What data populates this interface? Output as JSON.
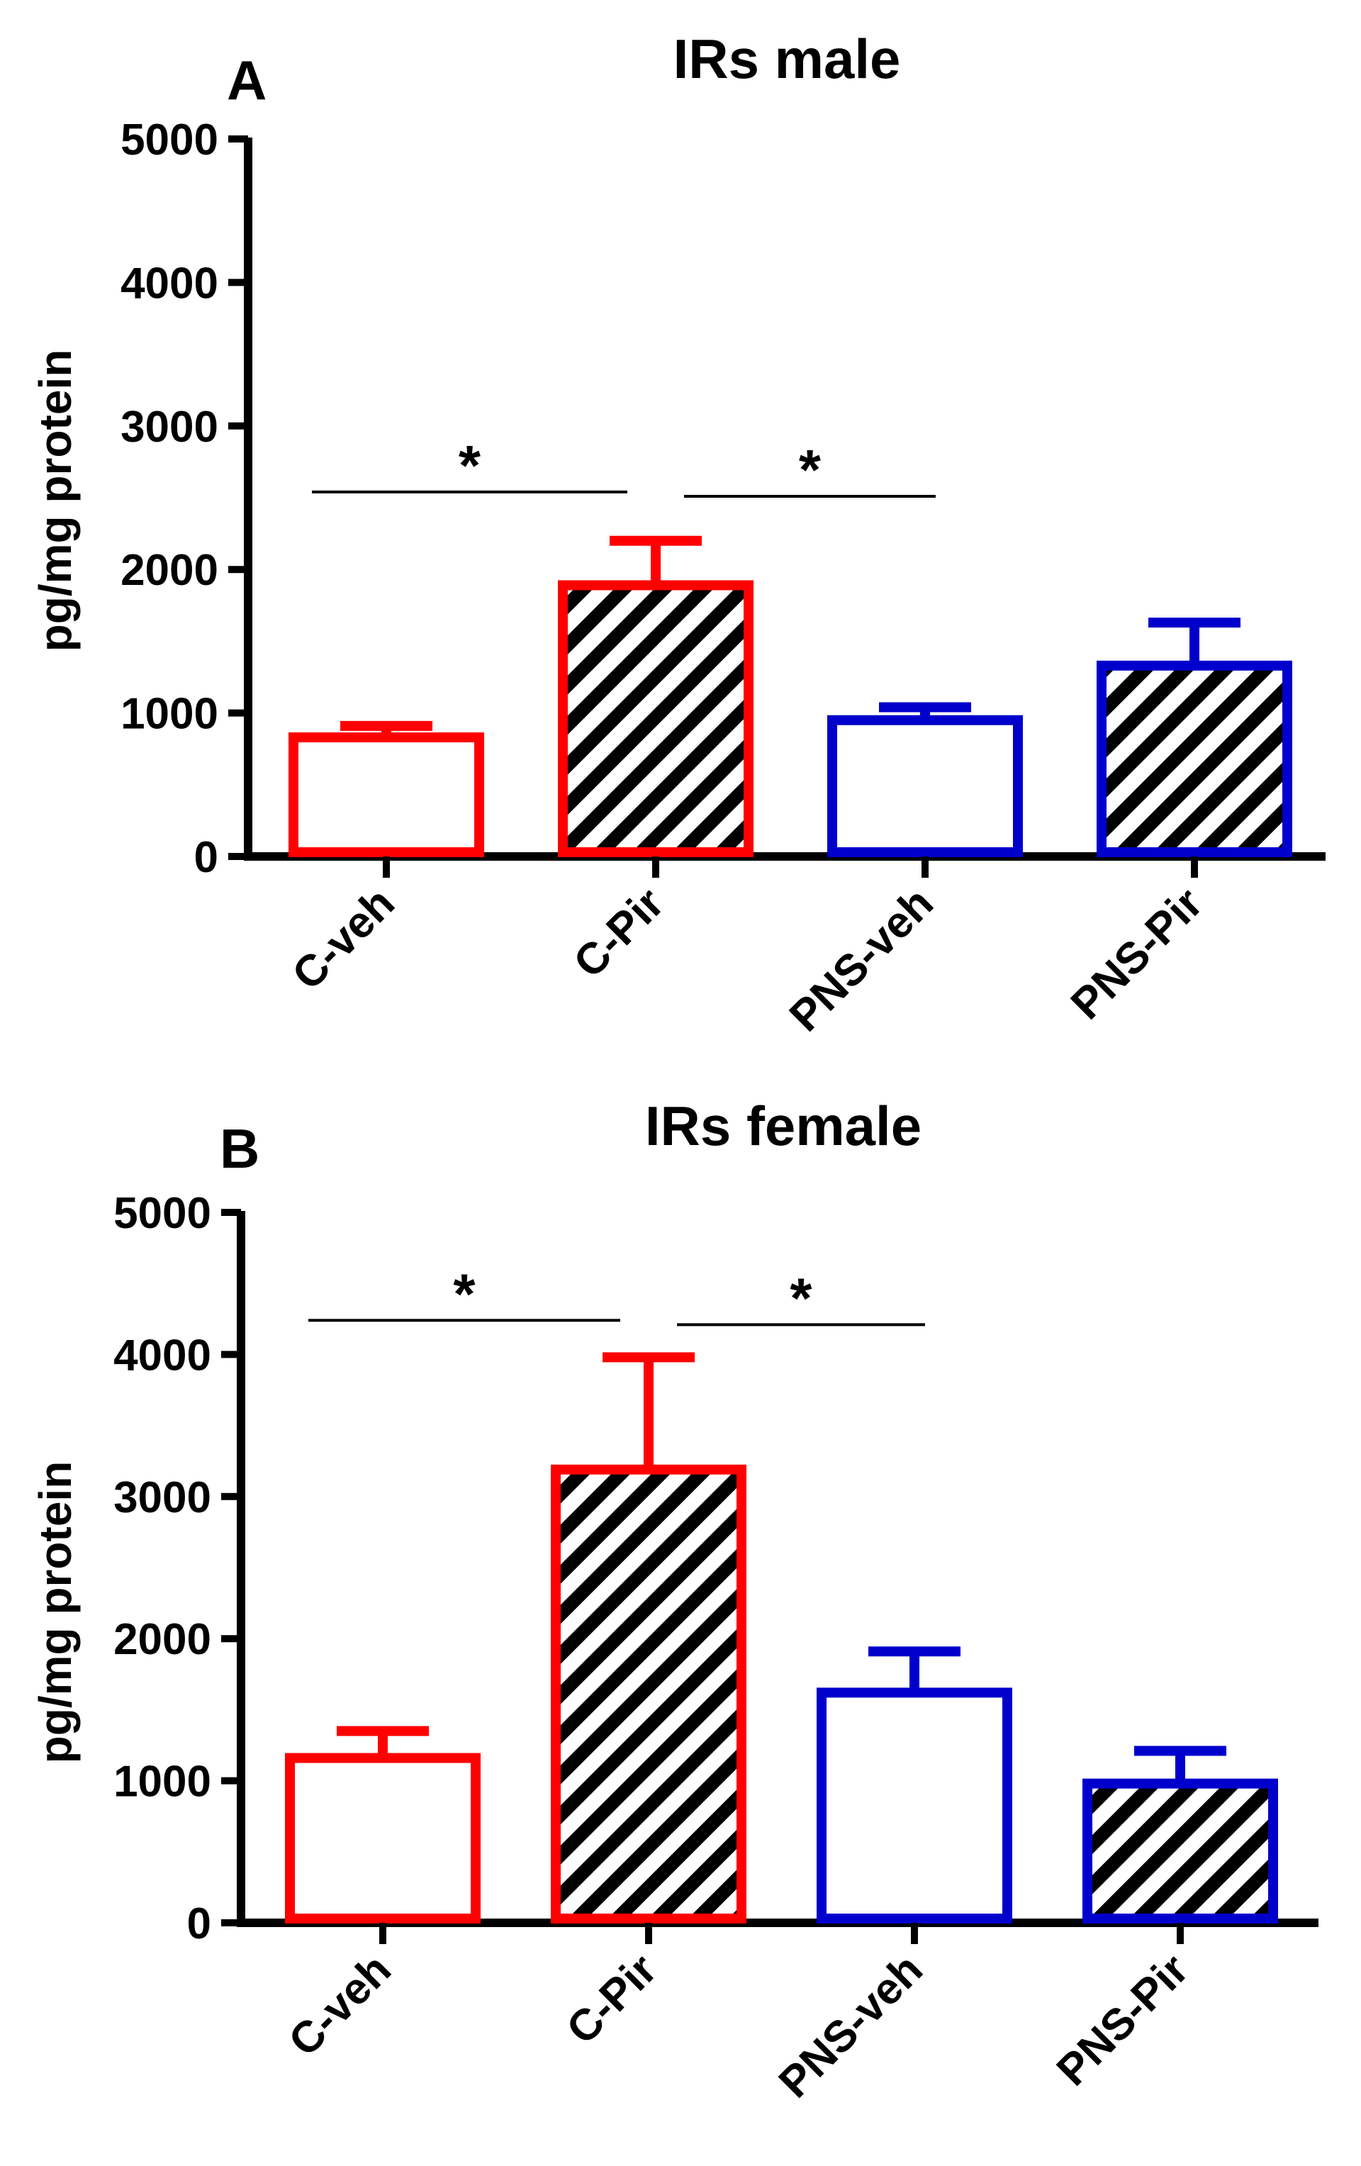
{
  "chart_data": [
    {
      "type": "bar",
      "panel_label": "A",
      "title": "IRs male",
      "xlabel": "",
      "ylabel": "pg/mg protein",
      "ylim": [
        0,
        5000
      ],
      "yticks": [
        0,
        1000,
        2000,
        3000,
        4000,
        5000
      ],
      "ytick_labels": [
        "0",
        "1000",
        "2000",
        "3000",
        "4000",
        "5000"
      ],
      "categories": [
        "C-veh",
        "C-Pir",
        "PNS-veh",
        "PNS-Pir"
      ],
      "values": [
        830,
        1890,
        950,
        1330
      ],
      "errors": [
        80,
        310,
        90,
        300
      ],
      "bar_colors": [
        "#ff0000",
        "#ff0000",
        "#0000cc",
        "#0000cc"
      ],
      "bar_patterns": [
        "none",
        "hatch",
        "none",
        "hatch"
      ],
      "significance": [
        {
          "from": 0,
          "to": 1,
          "y": 2540,
          "label": "*"
        },
        {
          "from": 1,
          "to": 2,
          "y": 2510,
          "label": "*"
        }
      ],
      "grid": false,
      "legend": "none"
    },
    {
      "type": "bar",
      "panel_label": "B",
      "title": "IRs female",
      "xlabel": "",
      "ylabel": "pg/mg protein",
      "ylim": [
        0,
        5000
      ],
      "yticks": [
        0,
        1000,
        2000,
        3000,
        4000,
        5000
      ],
      "ytick_labels": [
        "0",
        "1000",
        "2000",
        "3000",
        "4000",
        "5000"
      ],
      "categories": [
        "C-veh",
        "C-Pir",
        "PNS-veh",
        "PNS-Pir"
      ],
      "values": [
        1160,
        3190,
        1620,
        980
      ],
      "errors": [
        190,
        790,
        290,
        230
      ],
      "bar_colors": [
        "#ff0000",
        "#ff0000",
        "#0000cc",
        "#0000cc"
      ],
      "bar_patterns": [
        "none",
        "hatch",
        "none",
        "hatch"
      ],
      "significance": [
        {
          "from": 0,
          "to": 1,
          "y": 4240,
          "label": "*"
        },
        {
          "from": 1,
          "to": 2,
          "y": 4210,
          "label": "*"
        }
      ],
      "grid": false,
      "legend": "none"
    }
  ]
}
